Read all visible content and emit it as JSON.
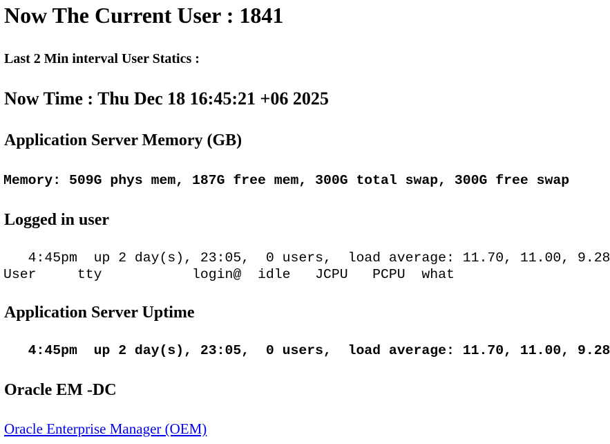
{
  "current_user": "Now The Current User : 1841",
  "interval_stats": "Last 2 Min interval User Statics :",
  "now_time": "Now Time : Thu Dec 18 16:45:21 +06 2025",
  "memory_heading": "Application Server Memory (GB)",
  "memory_line": "Memory: 509G phys mem, 187G free mem, 300G total swap, 300G free swap",
  "logged_heading": "Logged in user",
  "logged_lines": [
    "   4:45pm  up 2 day(s), 23:05,  0 users,  load average: 11.70, 11.00, 9.28",
    "User     tty           login@  idle   JCPU   PCPU  what"
  ],
  "uptime_heading": "Application Server Uptime",
  "uptime_line": "   4:45pm  up 2 day(s), 23:05,  0 users,  load average: 11.70, 11.00, 9.28",
  "oem_heading": "Oracle EM -DC",
  "oem_link": "Oracle Enterprise Manager (OEM)",
  "colors": {
    "link": "#0000ee"
  }
}
